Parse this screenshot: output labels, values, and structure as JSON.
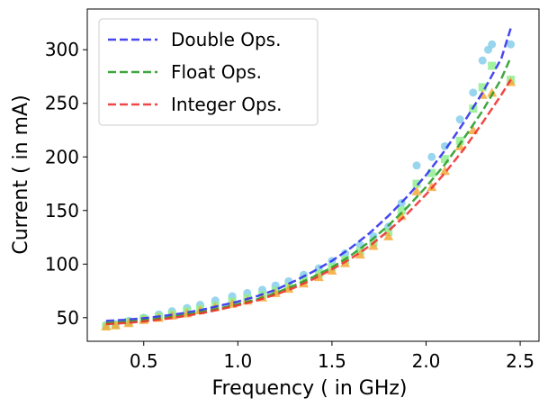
{
  "chart_data": {
    "type": "scatter",
    "xlabel": "Frequency ( in GHz)",
    "ylabel": "Current ( in mA)",
    "xlim": [
      0.2,
      2.6
    ],
    "ylim": [
      28,
      338
    ],
    "xticks": [
      0.5,
      1.0,
      1.5,
      2.0,
      2.5
    ],
    "xtick_labels": [
      "0.5",
      "1.0",
      "1.5",
      "2.0",
      "2.5"
    ],
    "yticks": [
      50,
      100,
      150,
      200,
      250,
      300
    ],
    "ytick_labels": [
      "50",
      "100",
      "150",
      "200",
      "250",
      "300"
    ],
    "grid": false,
    "legend_position": "top-left",
    "legend": [
      "Double Ops.",
      "Float Ops.",
      "Integer Ops."
    ],
    "series": [
      {
        "name": "Double Ops.",
        "fit_color": "#3333ee",
        "marker": "circle",
        "marker_color": "#87ceeb",
        "x": [
          0.3,
          0.35,
          0.42,
          0.5,
          0.58,
          0.65,
          0.73,
          0.8,
          0.88,
          0.97,
          1.05,
          1.13,
          1.2,
          1.27,
          1.35,
          1.43,
          1.5,
          1.57,
          1.65,
          1.72,
          1.8,
          1.87,
          1.95,
          2.03,
          2.1,
          2.18,
          2.25,
          2.3,
          2.33,
          2.35,
          2.45
        ],
        "y": [
          43,
          44,
          47,
          50,
          53,
          56,
          59,
          62,
          66,
          70,
          73,
          76,
          80,
          84,
          90,
          96,
          103,
          110,
          118,
          126,
          135,
          157,
          192,
          200,
          210,
          235,
          260,
          290,
          300,
          305,
          305
        ],
        "fit_x": [
          0.3,
          0.4,
          0.5,
          0.6,
          0.7,
          0.8,
          0.9,
          1.0,
          1.1,
          1.2,
          1.3,
          1.4,
          1.5,
          1.6,
          1.7,
          1.8,
          1.9,
          2.0,
          2.1,
          2.2,
          2.3,
          2.4,
          2.45
        ],
        "fit_y": [
          47,
          48,
          49.5,
          51.5,
          54,
          57,
          61,
          65,
          70,
          76,
          84,
          93,
          103,
          115,
          129,
          145,
          163,
          183,
          206,
          232,
          260,
          292,
          320
        ]
      },
      {
        "name": "Float Ops.",
        "fit_color": "#2a9d2a",
        "marker": "square",
        "marker_color": "#90ee90",
        "x": [
          0.3,
          0.35,
          0.42,
          0.5,
          0.58,
          0.65,
          0.73,
          0.8,
          0.88,
          0.97,
          1.05,
          1.13,
          1.2,
          1.27,
          1.35,
          1.43,
          1.5,
          1.57,
          1.65,
          1.72,
          1.8,
          1.87,
          1.95,
          2.03,
          2.1,
          2.18,
          2.25,
          2.3,
          2.35,
          2.45
        ],
        "y": [
          42,
          43,
          46,
          49,
          51,
          53,
          56,
          58,
          61,
          65,
          68,
          71,
          75,
          79,
          85,
          91,
          97,
          104,
          112,
          120,
          130,
          150,
          175,
          185,
          198,
          215,
          245,
          265,
          285,
          272
        ],
        "fit_x": [
          0.3,
          0.4,
          0.5,
          0.6,
          0.7,
          0.8,
          0.9,
          1.0,
          1.1,
          1.2,
          1.3,
          1.4,
          1.5,
          1.6,
          1.7,
          1.8,
          1.9,
          2.0,
          2.1,
          2.2,
          2.3,
          2.4,
          2.45
        ],
        "fit_y": [
          45,
          46,
          47.5,
          49.5,
          52,
          55,
          58.5,
          62.5,
          67,
          73,
          80,
          88,
          97,
          108,
          121,
          136,
          153,
          172,
          193,
          217,
          243,
          273,
          293
        ]
      },
      {
        "name": "Integer Ops.",
        "fit_color": "#ee3333",
        "marker": "triangle",
        "marker_color": "#f4a93a",
        "x": [
          0.3,
          0.35,
          0.42,
          0.5,
          0.58,
          0.65,
          0.73,
          0.8,
          0.88,
          0.97,
          1.05,
          1.13,
          1.2,
          1.27,
          1.35,
          1.43,
          1.5,
          1.57,
          1.65,
          1.72,
          1.8,
          1.87,
          1.95,
          2.03,
          2.1,
          2.18,
          2.25,
          2.3,
          2.35,
          2.45
        ],
        "y": [
          42,
          43,
          45,
          48,
          50,
          52,
          54,
          57,
          60,
          63,
          66,
          69,
          73,
          77,
          82,
          88,
          94,
          101,
          109,
          117,
          126,
          145,
          168,
          172,
          187,
          210,
          225,
          258,
          260,
          270
        ],
        "fit_x": [
          0.3,
          0.4,
          0.5,
          0.6,
          0.7,
          0.8,
          0.9,
          1.0,
          1.1,
          1.2,
          1.3,
          1.4,
          1.5,
          1.6,
          1.7,
          1.8,
          1.9,
          2.0,
          2.1,
          2.2,
          2.3,
          2.4,
          2.45
        ],
        "fit_y": [
          44,
          45,
          46.5,
          48.5,
          51,
          54,
          57.5,
          61.5,
          66,
          71.5,
          78,
          86,
          95,
          105,
          117,
          131,
          147,
          165,
          185,
          207,
          232,
          258,
          272
        ]
      }
    ]
  }
}
